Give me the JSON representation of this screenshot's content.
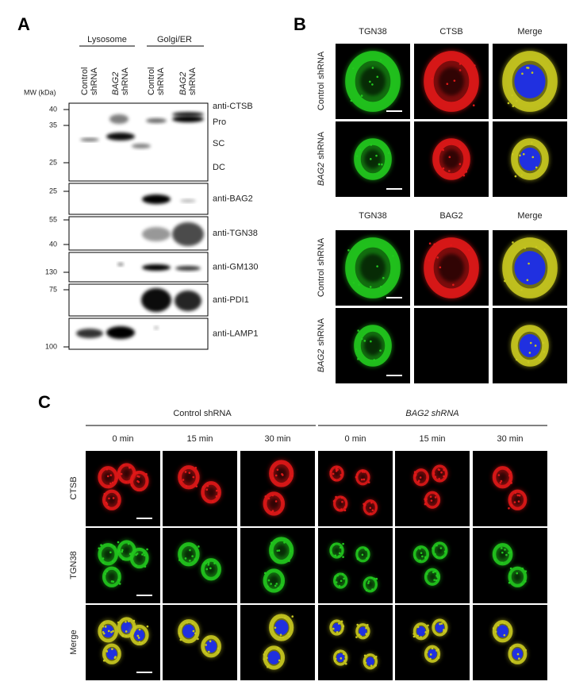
{
  "panel_a": {
    "label": "A",
    "mw_title": "MW (kDa)",
    "groups": [
      "Lysosome",
      "Golgi/ER"
    ],
    "lanes": [
      {
        "line1": "Control",
        "line2": "shRNA"
      },
      {
        "line1": "BAG2",
        "line2": "shRNA"
      },
      {
        "line1": "Control",
        "line2": "shRNA"
      },
      {
        "line1": "BAG2",
        "line2": "shRNA"
      }
    ],
    "blots": [
      {
        "antibody": "anti-CTSB",
        "mw": [
          40,
          35,
          25
        ],
        "forms": [
          "Pro",
          "SC",
          "DC"
        ]
      },
      {
        "antibody": "anti-BAG2",
        "mw": [
          25
        ]
      },
      {
        "antibody": "anti-TGN38",
        "mw": [
          55,
          40
        ]
      },
      {
        "antibody": "anti-GM130",
        "mw": [
          130
        ]
      },
      {
        "antibody": "anti-PDI1",
        "mw": [
          75
        ]
      },
      {
        "antibody": "anti-LAMP1",
        "mw": [
          100
        ]
      }
    ]
  },
  "panel_b": {
    "label": "B",
    "blocks": [
      {
        "columns": [
          "TGN38",
          "CTSB",
          "Merge"
        ],
        "rows": [
          {
            "gene": "Control",
            "suffix": "shRNA"
          },
          {
            "gene": "BAG2",
            "suffix": "shRNA"
          }
        ]
      },
      {
        "columns": [
          "TGN38",
          "BAG2",
          "Merge"
        ],
        "rows": [
          {
            "gene": "Control",
            "suffix": "shRNA"
          },
          {
            "gene": "BAG2",
            "suffix": "shRNA"
          }
        ]
      }
    ]
  },
  "panel_c": {
    "label": "C",
    "groups": [
      "Control shRNA",
      "BAG2 shRNA"
    ],
    "times": [
      "0 min",
      "15 min",
      "30 min",
      "0 min",
      "15 min",
      "30 min"
    ],
    "rows": [
      "CTSB",
      "TGN38",
      "Merge"
    ]
  }
}
